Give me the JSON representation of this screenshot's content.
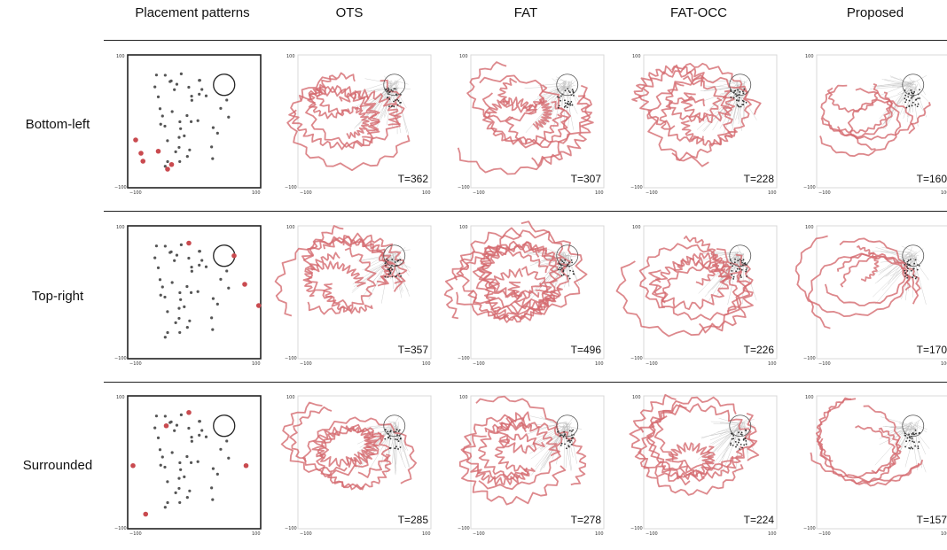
{
  "columns": [
    "Placement patterns",
    "OTS",
    "FAT",
    "FAT-OCC",
    "Proposed"
  ],
  "axis_ticks": {
    "y_top": "100",
    "y_bottom": "−100",
    "x_left": "−100",
    "x_right": "100"
  },
  "colors": {
    "attacker": "#c94a4f",
    "trajectory": "#d46a6f",
    "sheep": "#555555",
    "guide": "#bbbbbb",
    "target": "#222222"
  },
  "rows": [
    {
      "label": "Bottom-left",
      "attackers": [
        [
          -88,
          -28
        ],
        [
          -80,
          -48
        ],
        [
          -77,
          -60
        ],
        [
          -54,
          -45
        ],
        [
          -40,
          -72
        ],
        [
          -34,
          -65
        ]
      ],
      "times": [
        "T=362",
        "T=307",
        "T=228",
        "T=160"
      ]
    },
    {
      "label": "Top-right",
      "attackers": [
        [
          -8,
          74
        ],
        [
          60,
          55
        ],
        [
          76,
          12
        ],
        [
          97,
          -20
        ]
      ],
      "times": [
        "T=357",
        "T=496",
        "T=226",
        "T=170"
      ]
    },
    {
      "label": "Surrounded",
      "attackers": [
        [
          -92,
          -5
        ],
        [
          -42,
          55
        ],
        [
          -8,
          75
        ],
        [
          78,
          -5
        ],
        [
          -73,
          -78
        ]
      ],
      "times": [
        "T=285",
        "T=278",
        "T=224",
        "T=157"
      ]
    }
  ]
}
